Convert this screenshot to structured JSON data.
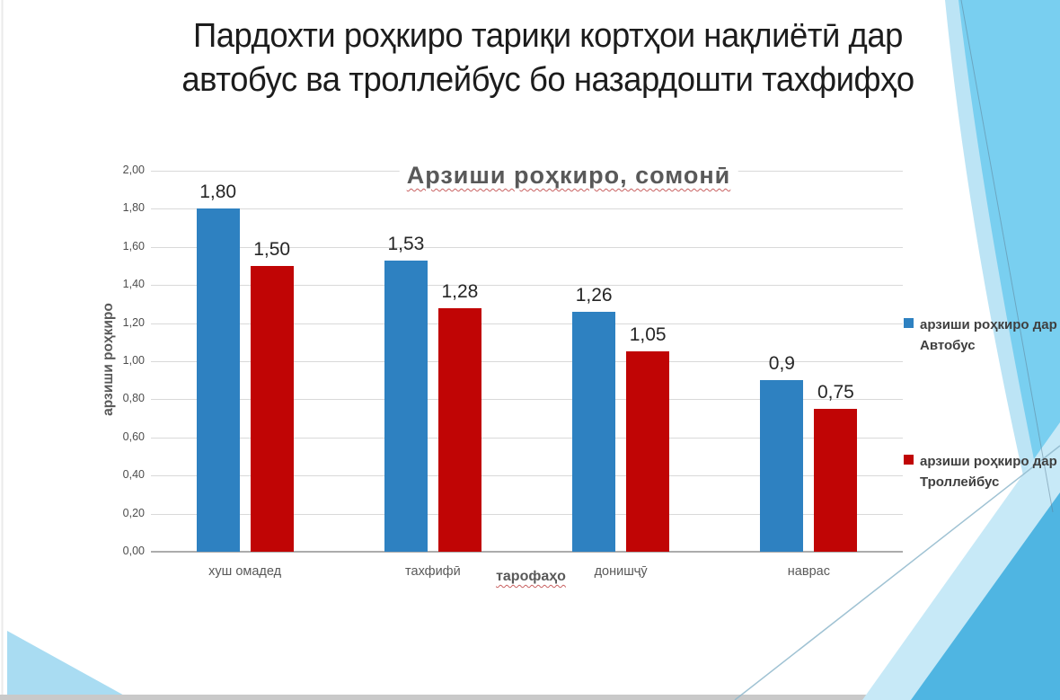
{
  "slide": {
    "title_lines": [
      "Пардохти роҳкиро тариқи кортҳои нақлиётӣ дар",
      "автобус ва троллейбус бо назардошти тахфифҳо"
    ]
  },
  "chart_data": {
    "type": "bar",
    "title": "Арзиши роҳкиро, сомонӣ",
    "xlabel": "тарофаҳо",
    "ylabel": "арзиши роҳкиро",
    "categories": [
      "хуш омадед",
      "тахфифӣ",
      "донишҷӯ",
      "наврас"
    ],
    "series": [
      {
        "name": "арзиши роҳкиро дар Автобус",
        "color": "#2E81C1",
        "values": [
          1.8,
          1.53,
          1.26,
          0.9
        ],
        "labels": [
          "1,80",
          "1,53",
          "1,26",
          "0,9"
        ]
      },
      {
        "name": "арзиши роҳкиро дар Троллейбус",
        "color": "#C00505",
        "values": [
          1.5,
          1.28,
          1.05,
          0.75
        ],
        "labels": [
          "1,50",
          "1,28",
          "1,05",
          "0,75"
        ]
      }
    ],
    "y_ticks": [
      "2,00",
      "1,80",
      "1,60",
      "1,40",
      "1,20",
      "1,00",
      "0,80",
      "0,60",
      "0,40",
      "0,20",
      "0,00"
    ],
    "ylim": [
      0,
      2.0
    ],
    "grid": true,
    "legend_position": "right"
  },
  "colors": {
    "bus_series": "#2E81C1",
    "trolleybus_series": "#C00505",
    "decor_sky_blue": "#79CFF0",
    "decor_medium_blue": "#4FB5E2",
    "decor_pale_blue": "#C7E9F7",
    "bottom_strip_gray": "#C9C9C9",
    "grid_gray": "#D9D9D9"
  }
}
